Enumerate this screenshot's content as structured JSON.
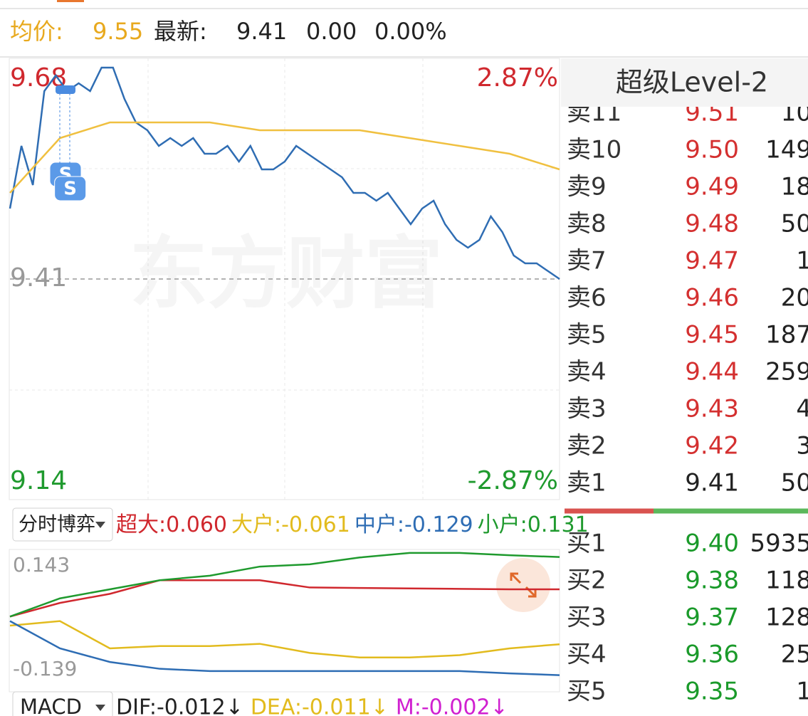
{
  "header": {
    "avg_label": "均价:",
    "avg_value": "9.55",
    "latest_label": "最新:",
    "latest": "9.41",
    "change": "0.00",
    "change_pct": "0.00%"
  },
  "watermark": "东方财富",
  "badge": "S",
  "chart_data": [
    {
      "type": "line",
      "ylim": [
        9.14,
        9.68
      ],
      "yticks": [
        9.68,
        9.41,
        9.14
      ],
      "y2lim": [
        -2.87,
        2.87
      ],
      "y2ticks": [
        {
          "value": 2.87,
          "label": "2.87%"
        },
        {
          "value": -2.87,
          "label": "-2.87%"
        }
      ],
      "series": [
        {
          "color": "#2f6db3",
          "values": [
            9.5,
            9.58,
            9.53,
            9.65,
            9.67,
            9.65,
            9.66,
            9.65,
            9.68,
            9.68,
            9.64,
            9.61,
            9.6,
            9.58,
            9.59,
            9.58,
            9.59,
            9.57,
            9.57,
            9.58,
            9.56,
            9.58,
            9.55,
            9.55,
            9.56,
            9.58,
            9.57,
            9.56,
            9.55,
            9.54,
            9.52,
            9.52,
            9.51,
            9.52,
            9.5,
            9.48,
            9.5,
            9.51,
            9.48,
            9.46,
            9.45,
            9.46,
            9.49,
            9.47,
            9.44,
            9.43,
            9.43,
            9.42,
            9.41
          ]
        },
        {
          "color": "#f0c040",
          "values": [
            9.52,
            9.59,
            9.61,
            9.61,
            9.61,
            9.6,
            9.6,
            9.6,
            9.59,
            9.58,
            9.57,
            9.55
          ]
        }
      ]
    },
    {
      "type": "line",
      "selector": "分时博弈",
      "ylim": [
        -0.139,
        0.143
      ],
      "yticks": [
        0.143,
        -0.139
      ],
      "series": [
        {
          "name": "超大:",
          "last_label": "0.060",
          "color": "#d0282e",
          "values": [
            0.0,
            0.03,
            0.05,
            0.08,
            0.08,
            0.08,
            0.064,
            0.063,
            0.062,
            0.061,
            0.06,
            0.06
          ]
        },
        {
          "name": "大户:",
          "last_label": "-0.061",
          "color": "#e2bb1e",
          "values": [
            -0.02,
            -0.01,
            -0.07,
            -0.065,
            -0.065,
            -0.06,
            -0.08,
            -0.09,
            -0.09,
            -0.085,
            -0.07,
            -0.061
          ]
        },
        {
          "name": "中户:",
          "last_label": "-0.129",
          "color": "#2e6db4",
          "values": [
            -0.01,
            -0.07,
            -0.1,
            -0.115,
            -0.12,
            -0.12,
            -0.12,
            -0.12,
            -0.12,
            -0.12,
            -0.125,
            -0.129
          ]
        },
        {
          "name": "小户:",
          "last_label": "0.131",
          "color": "#1f9a2e",
          "values": [
            0.0,
            0.04,
            0.06,
            0.08,
            0.09,
            0.11,
            0.115,
            0.13,
            0.14,
            0.14,
            0.135,
            0.131
          ]
        }
      ]
    }
  ],
  "macd": {
    "indicator": "MACD",
    "items": [
      {
        "text": "DIF:-0.012↓",
        "color": "#222222"
      },
      {
        "text": "DEA:-0.011↓",
        "color": "#e2bb1e"
      },
      {
        "text": "M:-0.002↓",
        "color": "#d020d0"
      }
    ]
  },
  "order_book": {
    "title": "超级Level-2",
    "asks": [
      [
        "卖11",
        "9.51",
        "10"
      ],
      [
        "卖10",
        "9.50",
        "149"
      ],
      [
        "卖9",
        "9.49",
        "18"
      ],
      [
        "卖8",
        "9.48",
        "50"
      ],
      [
        "卖7",
        "9.47",
        "1"
      ],
      [
        "卖6",
        "9.46",
        "20"
      ],
      [
        "卖5",
        "9.45",
        "187"
      ],
      [
        "卖4",
        "9.44",
        "259"
      ],
      [
        "卖3",
        "9.43",
        "4"
      ],
      [
        "卖2",
        "9.42",
        "3"
      ],
      [
        "卖1",
        "9.41",
        "50"
      ]
    ],
    "bids": [
      [
        "买1",
        "9.40",
        "5935"
      ],
      [
        "买2",
        "9.38",
        "118"
      ],
      [
        "买3",
        "9.37",
        "128"
      ],
      [
        "买4",
        "9.36",
        "25"
      ],
      [
        "买5",
        "9.35",
        "1"
      ]
    ]
  }
}
